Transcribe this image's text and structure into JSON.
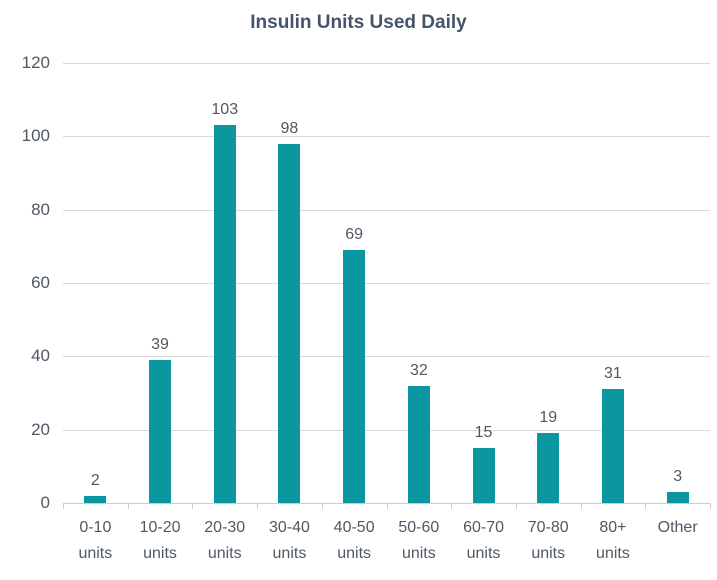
{
  "chart_data": {
    "type": "bar",
    "title": "Insulin Units Used Daily",
    "categories": [
      "0-10 units",
      "10-20 units",
      "20-30 units",
      "30-40 units",
      "40-50 units",
      "50-60 units",
      "60-70 units",
      "70-80 units",
      "80+ units",
      "Other"
    ],
    "values": [
      2,
      39,
      103,
      98,
      69,
      32,
      15,
      19,
      31,
      3
    ],
    "xlabel": "",
    "ylabel": "",
    "ylim": [
      0,
      120
    ],
    "yticks": [
      0,
      20,
      40,
      60,
      80,
      100,
      120
    ],
    "grid": "horizontal",
    "legend": "none",
    "data_labels": "above-bars"
  },
  "colors": {
    "bar": "#0C96A0",
    "title_text": "#44546A",
    "axis_text": "#4E5965",
    "gridline": "#D9D9D9",
    "axis_line": "#C9CDD1",
    "background": "#FFFFFF"
  }
}
